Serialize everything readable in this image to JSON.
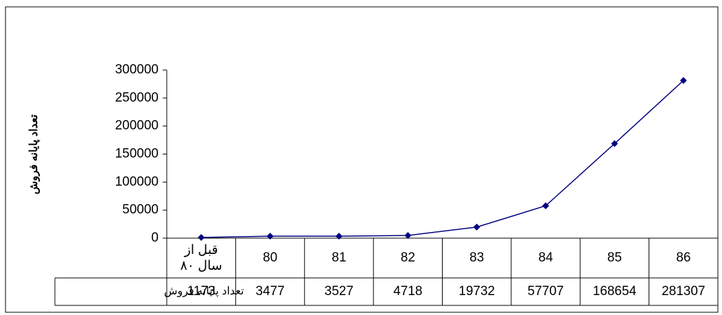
{
  "chart_data": {
    "type": "line",
    "y_label": "تعداد پایانه فروش",
    "categories": [
      "قبل از سال ۸۰",
      "80",
      "81",
      "82",
      "83",
      "84",
      "85",
      "86"
    ],
    "series": [
      {
        "name": "تعداد پایانه فروش",
        "color": "#000080",
        "values": [
          1173,
          3477,
          3527,
          4718,
          19732,
          57707,
          168654,
          281307
        ]
      }
    ],
    "ylim": [
      0,
      300000
    ],
    "yticks": [
      0,
      50000,
      100000,
      150000,
      200000,
      250000,
      300000
    ],
    "grid": false,
    "data_table": true
  }
}
